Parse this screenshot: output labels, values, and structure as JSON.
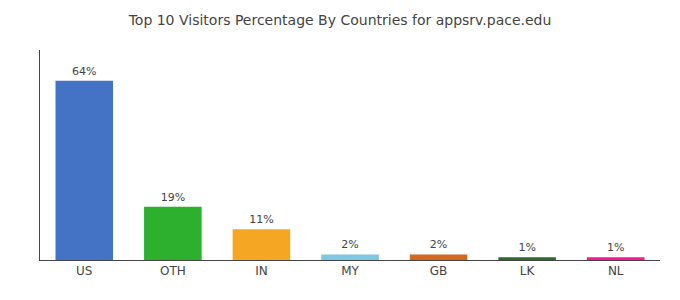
{
  "chart_data": {
    "type": "bar",
    "title": "Top 10 Visitors Percentage By Countries for appsrv.pace.edu",
    "categories": [
      "US",
      "OTH",
      "IN",
      "MY",
      "GB",
      "LK",
      "NL"
    ],
    "values": [
      64,
      19,
      11,
      2,
      2,
      1,
      1
    ],
    "value_labels": [
      "64%",
      "19%",
      "11%",
      "2%",
      "2%",
      "1%",
      "1%"
    ],
    "colors": [
      "#4472c4",
      "#2db02d",
      "#f5a623",
      "#7ec8e3",
      "#d2691e",
      "#2d6a2d",
      "#ff1493"
    ],
    "data_labels": true,
    "ylim": [
      0,
      75
    ],
    "grid": false,
    "tick_labels": "x"
  }
}
